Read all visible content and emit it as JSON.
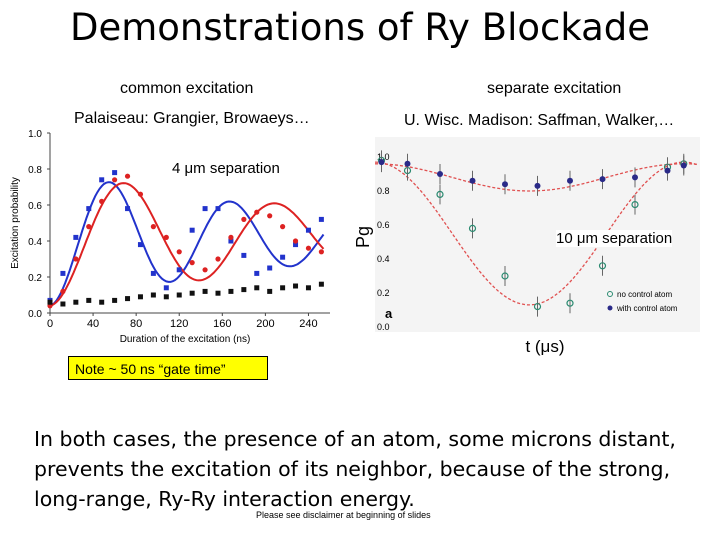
{
  "slide": {
    "title": "Demonstrations of Ry Blockade",
    "left_heading": "common excitation",
    "right_heading": "separate excitation",
    "left_group": "Palaiseau: Grangier, Browaeys…",
    "right_group": "U. Wisc. Madison:  Saffman, Walker,…",
    "left_separation": "4 μm separation",
    "right_separation": "10 μm separation",
    "note": "Note ~ 50 ns “gate time”",
    "body": "In both cases, the presence of an atom, some microns distant, prevents the excitation of its neighbor, because of the strong, long-range, Ry-Ry interaction energy.",
    "disclaimer": "Please see disclaimer at beginning of slides"
  },
  "chart_data": [
    {
      "type": "scatter",
      "xlabel": "Duration of the excitation (ns)",
      "ylabel": "Excitation probability",
      "xlim": [
        0,
        260
      ],
      "ylim": [
        0,
        1.0
      ],
      "xticks": [
        0,
        40,
        80,
        120,
        160,
        200,
        240
      ],
      "yticks": [
        0.0,
        0.2,
        0.4,
        0.6,
        0.8,
        1.0
      ],
      "series": [
        {
          "color": "#2233cc",
          "x": [
            0,
            12,
            24,
            36,
            48,
            60,
            72,
            84,
            96,
            108,
            120,
            132,
            144,
            156,
            168,
            180,
            192,
            204,
            216,
            228,
            240,
            252
          ],
          "y": [
            0.07,
            0.22,
            0.42,
            0.58,
            0.74,
            0.78,
            0.58,
            0.38,
            0.22,
            0.14,
            0.24,
            0.46,
            0.58,
            0.58,
            0.4,
            0.32,
            0.22,
            0.25,
            0.31,
            0.38,
            0.46,
            0.52
          ]
        },
        {
          "color": "#dd2222",
          "x": [
            0,
            12,
            24,
            36,
            48,
            60,
            72,
            84,
            96,
            108,
            120,
            132,
            144,
            156,
            168,
            180,
            192,
            204,
            216,
            228,
            240,
            252
          ],
          "y": [
            0.04,
            0.12,
            0.3,
            0.48,
            0.62,
            0.74,
            0.76,
            0.66,
            0.48,
            0.42,
            0.34,
            0.28,
            0.24,
            0.3,
            0.42,
            0.52,
            0.56,
            0.54,
            0.48,
            0.4,
            0.36,
            0.34
          ]
        },
        {
          "color": "#111111",
          "x": [
            0,
            12,
            24,
            36,
            48,
            60,
            72,
            84,
            96,
            108,
            120,
            132,
            144,
            156,
            168,
            180,
            192,
            204,
            216,
            228,
            240,
            252
          ],
          "y": [
            0.06,
            0.05,
            0.06,
            0.07,
            0.06,
            0.07,
            0.08,
            0.09,
            0.1,
            0.09,
            0.1,
            0.11,
            0.12,
            0.11,
            0.12,
            0.13,
            0.14,
            0.12,
            0.14,
            0.15,
            0.14,
            0.16
          ]
        }
      ]
    },
    {
      "type": "scatter",
      "xlabel": "t (μs)",
      "ylabel": "Pg",
      "xlim": [
        0,
        1
      ],
      "ylim": [
        0.0,
        1.0
      ],
      "yticks": [
        0.0,
        0.2,
        0.4,
        0.6,
        0.8,
        1.0
      ],
      "legend": [
        "no control atom",
        "with control atom"
      ],
      "panel_label": "a",
      "series": [
        {
          "name": "no control atom",
          "color": "#2a8a70",
          "open": true,
          "x": [
            0.02,
            0.1,
            0.2,
            0.3,
            0.4,
            0.5,
            0.6,
            0.7,
            0.8,
            0.9,
            0.95
          ],
          "y": [
            0.98,
            0.92,
            0.78,
            0.58,
            0.3,
            0.12,
            0.14,
            0.36,
            0.72,
            0.94,
            0.96
          ]
        },
        {
          "name": "with control atom",
          "color": "#2a2a88",
          "open": false,
          "x": [
            0.02,
            0.1,
            0.2,
            0.3,
            0.4,
            0.5,
            0.6,
            0.7,
            0.8,
            0.9,
            0.95
          ],
          "y": [
            0.97,
            0.96,
            0.9,
            0.86,
            0.84,
            0.83,
            0.86,
            0.87,
            0.88,
            0.92,
            0.95
          ]
        }
      ]
    }
  ]
}
